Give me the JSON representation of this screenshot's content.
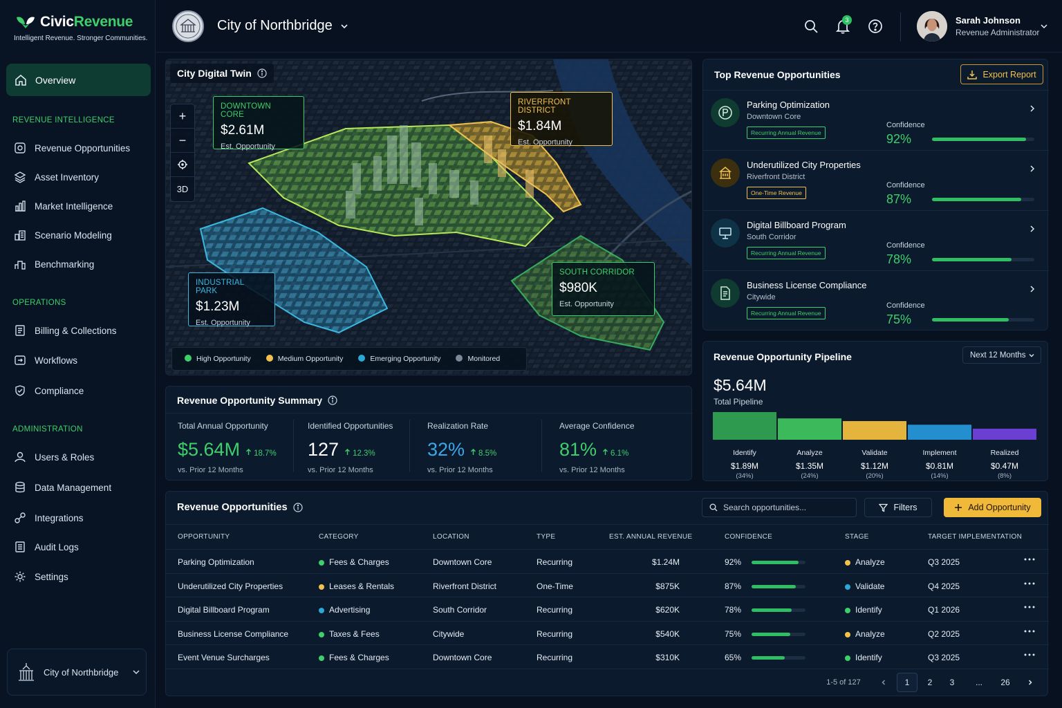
{
  "brand": {
    "name_part1": "Civic",
    "name_part2": "Revenue",
    "tagline": "Intelligent Revenue. Stronger Communities."
  },
  "sidebar": {
    "active": {
      "label": "Overview",
      "icon": "home-icon"
    },
    "sections": [
      {
        "title": "REVENUE INTELLIGENCE",
        "items": [
          {
            "label": "Revenue Opportunities",
            "icon": "target-icon"
          },
          {
            "label": "Asset Inventory",
            "icon": "stack-icon"
          },
          {
            "label": "Market Intelligence",
            "icon": "chart-icon"
          },
          {
            "label": "Scenario Modeling",
            "icon": "model-icon"
          },
          {
            "label": "Benchmarking",
            "icon": "podium-icon"
          }
        ]
      },
      {
        "title": "OPERATIONS",
        "items": [
          {
            "label": "Billing & Collections",
            "icon": "invoice-icon"
          },
          {
            "label": "Workflows",
            "icon": "workflow-icon"
          },
          {
            "label": "Compliance",
            "icon": "shield-icon"
          }
        ]
      },
      {
        "title": "ADMINISTRATION",
        "items": [
          {
            "label": "Users & Roles",
            "icon": "user-icon"
          },
          {
            "label": "Data Management",
            "icon": "database-icon"
          },
          {
            "label": "Integrations",
            "icon": "link-icon"
          },
          {
            "label": "Audit Logs",
            "icon": "log-icon"
          },
          {
            "label": "Settings",
            "icon": "gear-icon"
          }
        ]
      }
    ],
    "org_switcher": "City of Northbridge"
  },
  "header": {
    "city": "City of Northbridge",
    "notifications": "3",
    "user": {
      "name": "Sarah Johnson",
      "role": "Revenue Administrator"
    }
  },
  "map": {
    "title": "City Digital Twin",
    "controls": [
      "+",
      "−",
      "3D"
    ],
    "zones": [
      {
        "name": "DOWNTOWN CORE",
        "value": "$2.61M",
        "label": "Est. Opportunity",
        "color": "#3fcf6a"
      },
      {
        "name": "RIVERFRONT DISTRICT",
        "value": "$1.84M",
        "label": "Est. Opportunity",
        "color": "#f2c14e"
      },
      {
        "name": "INDUSTRIAL PARK",
        "value": "$1.23M",
        "label": "Est. Opportunity",
        "color": "#3bb8e0"
      },
      {
        "name": "SOUTH CORRIDOR",
        "value": "$980K",
        "label": "Est. Opportunity",
        "color": "#3fcf6a"
      }
    ],
    "legend": [
      {
        "label": "High Opportunity",
        "color": "#3fcf6a"
      },
      {
        "label": "Medium Opportunity",
        "color": "#f2c14e"
      },
      {
        "label": "Emerging Opportunity",
        "color": "#2ba9d6"
      },
      {
        "label": "Monitored",
        "color": "#7d8796"
      }
    ]
  },
  "top_opportunities": {
    "title": "Top Revenue Opportunities",
    "export_label": "Export Report",
    "confidence_label": "Confidence",
    "items": [
      {
        "name": "Parking Optimization",
        "location": "Downtown Core",
        "tag": "Recurring Annual Revenue",
        "confidence": "92%",
        "confidence_value": 0.92,
        "icon": "parking-icon",
        "tag_color": "#3fcf6a",
        "icon_bg": "#103b31"
      },
      {
        "name": "Underutilized City Properties",
        "location": "Riverfront District",
        "tag": "One-Time Revenue",
        "confidence": "87%",
        "confidence_value": 0.87,
        "icon": "building-icon",
        "tag_color": "#f2c14e",
        "icon_bg": "#3b2f10"
      },
      {
        "name": "Digital Billboard Program",
        "location": "South Corridor",
        "tag": "Recurring Annual Revenue",
        "confidence": "78%",
        "confidence_value": 0.78,
        "icon": "billboard-icon",
        "tag_color": "#3fcf6a",
        "icon_bg": "#0f3346"
      },
      {
        "name": "Business License Compliance",
        "location": "Citywide",
        "tag": "Recurring Annual Revenue",
        "confidence": "75%",
        "confidence_value": 0.75,
        "icon": "document-icon",
        "tag_color": "#3fcf6a",
        "icon_bg": "#103b31"
      }
    ]
  },
  "summary": {
    "title": "Revenue Opportunity Summary",
    "kpis": [
      {
        "label": "Total Annual Opportunity",
        "value": "$5.64M",
        "delta": "18.7%",
        "sub": "vs. Prior 12 Months",
        "color": "#3fcf6a"
      },
      {
        "label": "Identified Opportunities",
        "value": "127",
        "delta": "12.3%",
        "sub": "vs. Prior 12 Months",
        "color": "#ffffff"
      },
      {
        "label": "Realization Rate",
        "value": "32%",
        "delta": "8.5%",
        "sub": "vs. Prior 12 Months",
        "color": "#3ba7e8"
      },
      {
        "label": "Average Confidence",
        "value": "81%",
        "delta": "6.1%",
        "sub": "vs. Prior 12 Months",
        "color": "#3fcf6a"
      }
    ]
  },
  "pipeline": {
    "title": "Revenue Opportunity Pipeline",
    "period": "Next 12 Months",
    "total": "$5.64M",
    "total_label": "Total Pipeline",
    "stages": [
      {
        "name": "Identify",
        "value": "$1.89M",
        "pct": "(34%)",
        "amount": 1.89,
        "color": "#2e9a4f"
      },
      {
        "name": "Analyze",
        "value": "$1.35M",
        "pct": "(24%)",
        "amount": 1.35,
        "color": "#3cb95a"
      },
      {
        "name": "Validate",
        "value": "$1.12M",
        "pct": "(20%)",
        "amount": 1.12,
        "color": "#e5b43c"
      },
      {
        "name": "Implement",
        "value": "$0.81M",
        "pct": "(14%)",
        "amount": 0.81,
        "color": "#238fcf"
      },
      {
        "name": "Realized",
        "value": "$0.47M",
        "pct": "(8%)",
        "amount": 0.47,
        "color": "#6a3fd1"
      }
    ]
  },
  "table": {
    "title": "Revenue Opportunities",
    "search_placeholder": "Search opportunities...",
    "filters_label": "Filters",
    "add_label": "Add Opportunity",
    "columns": [
      "OPPORTUNITY",
      "CATEGORY",
      "LOCATION",
      "TYPE",
      "EST. ANNUAL REVENUE",
      "CONFIDENCE",
      "STAGE",
      "TARGET IMPLEMENTATION"
    ],
    "rows": [
      {
        "name": "Parking Optimization",
        "category": "Fees & Charges",
        "cat_color": "#3fcf6a",
        "location": "Downtown Core",
        "type": "Recurring",
        "revenue": "$1.24M",
        "confidence": "92%",
        "conf_value": 0.92,
        "stage": "Analyze",
        "stage_color": "#f2c14e",
        "target": "Q3 2025"
      },
      {
        "name": "Underutilized City Properties",
        "category": "Leases & Rentals",
        "cat_color": "#f2c14e",
        "location": "Riverfront District",
        "type": "One-Time",
        "revenue": "$875K",
        "confidence": "87%",
        "conf_value": 0.87,
        "stage": "Validate",
        "stage_color": "#2ba9d6",
        "target": "Q4 2025"
      },
      {
        "name": "Digital Billboard Program",
        "category": "Advertising",
        "cat_color": "#2ba9d6",
        "location": "South Corridor",
        "type": "Recurring",
        "revenue": "$620K",
        "confidence": "78%",
        "conf_value": 0.78,
        "stage": "Identify",
        "stage_color": "#3fcf6a",
        "target": "Q1 2026"
      },
      {
        "name": "Business License Compliance",
        "category": "Taxes & Fees",
        "cat_color": "#3fcf6a",
        "location": "Citywide",
        "type": "Recurring",
        "revenue": "$540K",
        "confidence": "75%",
        "conf_value": 0.75,
        "stage": "Analyze",
        "stage_color": "#f2c14e",
        "target": "Q2 2025"
      },
      {
        "name": "Event Venue Surcharges",
        "category": "Fees & Charges",
        "cat_color": "#3fcf6a",
        "location": "Downtown Core",
        "type": "Recurring",
        "revenue": "$310K",
        "confidence": "65%",
        "conf_value": 0.65,
        "stage": "Identify",
        "stage_color": "#3fcf6a",
        "target": "Q3 2025"
      }
    ],
    "pagination": {
      "summary": "1-5 of 127",
      "pages": [
        "1",
        "2",
        "3",
        "...",
        "26"
      ],
      "current": "1"
    }
  }
}
